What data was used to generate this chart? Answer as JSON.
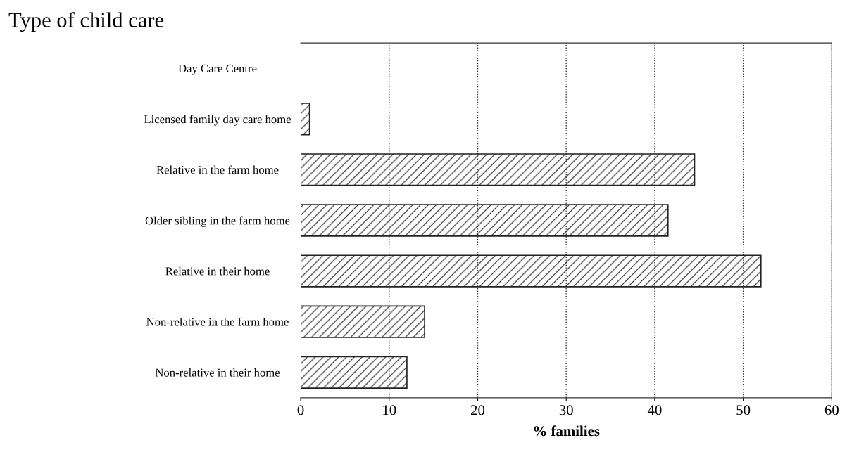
{
  "chart_data": {
    "type": "bar",
    "orientation": "horizontal",
    "title": "Type of child care",
    "xlabel": "% families",
    "categories": [
      "Day Care Centre",
      "Licensed family day care home",
      "Relative in the farm home",
      "Older sibling in the farm home",
      "Relative in their home",
      "Non-relative in the farm home",
      "Non-relative in their home"
    ],
    "values": [
      0,
      1,
      44.5,
      41.5,
      52,
      14,
      12
    ],
    "color": "#222222",
    "xlim": [
      0,
      60
    ],
    "xticks": [
      0,
      10,
      20,
      30,
      40,
      50,
      60
    ],
    "grid": "x"
  }
}
